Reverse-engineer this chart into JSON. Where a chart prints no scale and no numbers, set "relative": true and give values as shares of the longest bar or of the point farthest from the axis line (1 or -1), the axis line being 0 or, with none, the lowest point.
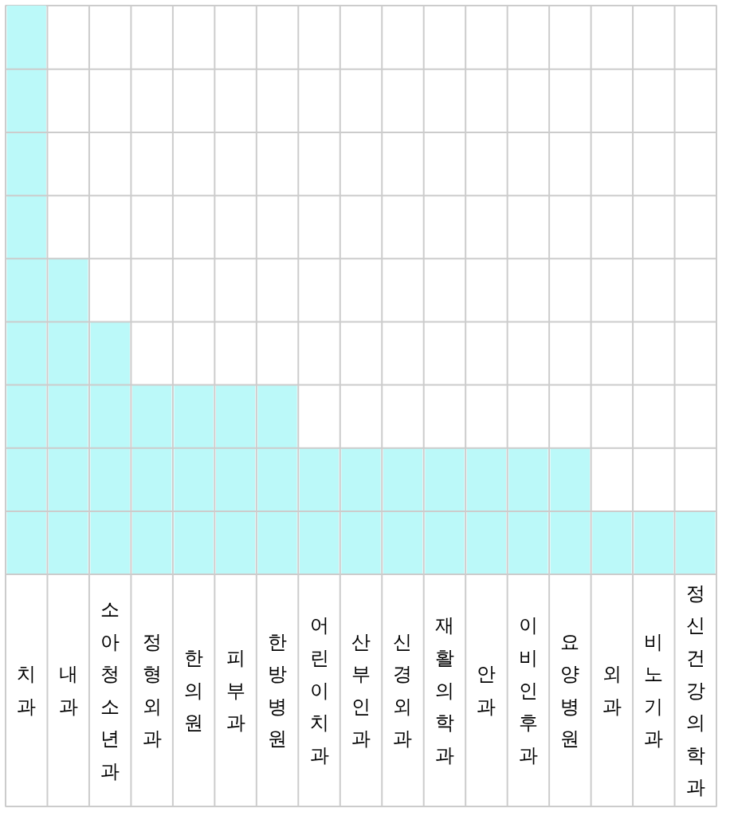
{
  "chart_data": {
    "type": "bar",
    "relative": true,
    "grid": true,
    "categories": [
      "치과",
      "내과",
      "소아청소년과",
      "정형외과",
      "한의원",
      "피부과",
      "한방병원",
      "어린이치과",
      "산부인과",
      "신경외과",
      "재활의학과",
      "안과",
      "이비인후과",
      "요양병원",
      "외과",
      "비노기과",
      "정신건강의학과"
    ],
    "values": [
      1,
      0.556,
      0.444,
      0.333,
      0.333,
      0.333,
      0.333,
      0.222,
      0.222,
      0.222,
      0.222,
      0.222,
      0.222,
      0.222,
      0.111,
      0.111,
      0.111
    ],
    "color": "#bbf9f9"
  }
}
